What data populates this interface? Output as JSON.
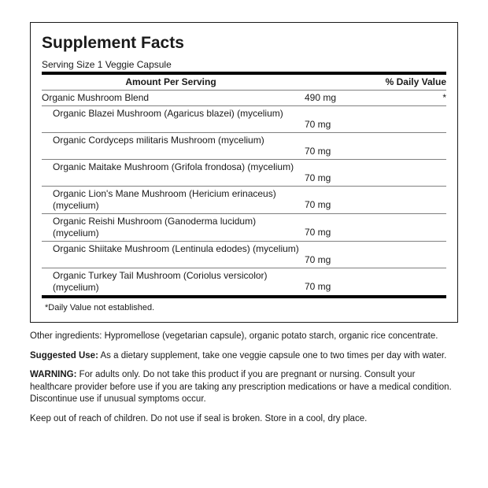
{
  "title": "Supplement Facts",
  "serving": "Serving Size 1 Veggie Capsule",
  "headers": {
    "amount": "Amount Per Serving",
    "dv": "% Daily Value"
  },
  "blend": {
    "name": "Organic Mushroom Blend",
    "amount": "490 mg",
    "dv": "*"
  },
  "items": [
    {
      "name": "Organic Blazei Mushroom (Agaricus blazei) (mycelium)",
      "amount": "70 mg"
    },
    {
      "name": "Organic Cordyceps militaris Mushroom (mycelium)",
      "amount": "70 mg"
    },
    {
      "name": "Organic Maitake Mushroom (Grifola frondosa) (mycelium)",
      "amount": "70 mg"
    },
    {
      "name": "Organic Lion's Mane Mushroom (Hericium erinaceus) (mycelium)",
      "amount": "70 mg"
    },
    {
      "name": "Organic Reishi Mushroom (Ganoderma lucidum) (mycelium)",
      "amount": "70 mg"
    },
    {
      "name": "Organic Shiitake Mushroom (Lentinula edodes) (mycelium)",
      "amount": "70 mg"
    },
    {
      "name": "Organic Turkey Tail Mushroom (Coriolus versicolor) (mycelium)",
      "amount": "70 mg"
    }
  ],
  "footnote": "*Daily Value not established.",
  "other_label": "Other ingredients: ",
  "other": "Hypromellose (vegetarian capsule), organic potato starch, organic rice concentrate.",
  "suggested_label": "Suggested Use:",
  "suggested": " As a dietary supplement, take one veggie capsule one to two times per day with water.",
  "warning_label": "WARNING:",
  "warning": " For adults only. Do not take this product if you are pregnant or nursing. Consult your healthcare provider before use if you are taking any prescription medications or have a medical condition. Discontinue use if unusual symptoms occur.",
  "storage": "Keep out of reach of children. Do not use if seal is broken. Store in a cool, dry place."
}
